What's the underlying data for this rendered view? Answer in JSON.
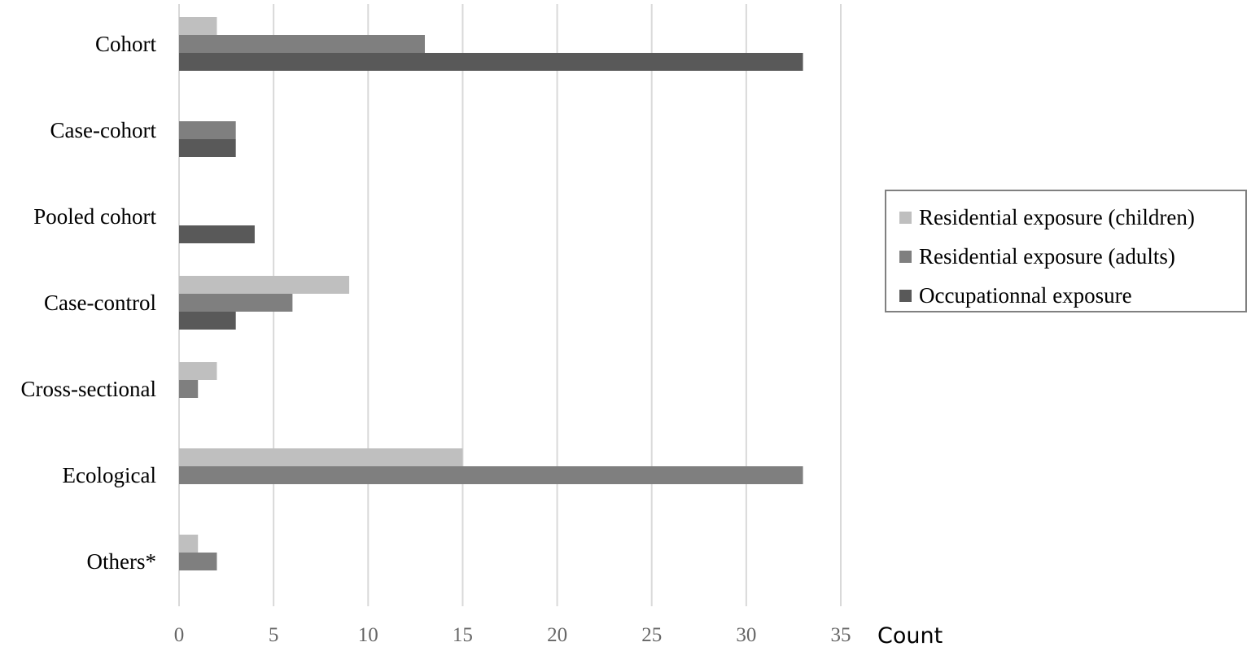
{
  "chart_data": {
    "type": "bar",
    "orientation": "horizontal",
    "categories": [
      "Cohort",
      "Case-cohort",
      "Pooled cohort",
      "Case-control",
      "Cross-sectional",
      "Ecological",
      "Others*"
    ],
    "series": [
      {
        "name": "Residential exposure (children)",
        "color": "#bfbfbf",
        "values": [
          2,
          0,
          0,
          9,
          2,
          15,
          1
        ]
      },
      {
        "name": "Residential exposure (adults)",
        "color": "#7f7f7f",
        "values": [
          13,
          3,
          0,
          6,
          1,
          33,
          2
        ]
      },
      {
        "name": "Occupationnal exposure",
        "color": "#595959",
        "values": [
          33,
          3,
          4,
          3,
          0,
          0,
          0
        ]
      }
    ],
    "xlabel": "Count",
    "xlim": [
      0,
      35
    ],
    "xticks": [
      0,
      5,
      10,
      15,
      20,
      25,
      30,
      35
    ],
    "grid": true,
    "legend_position": "right"
  }
}
